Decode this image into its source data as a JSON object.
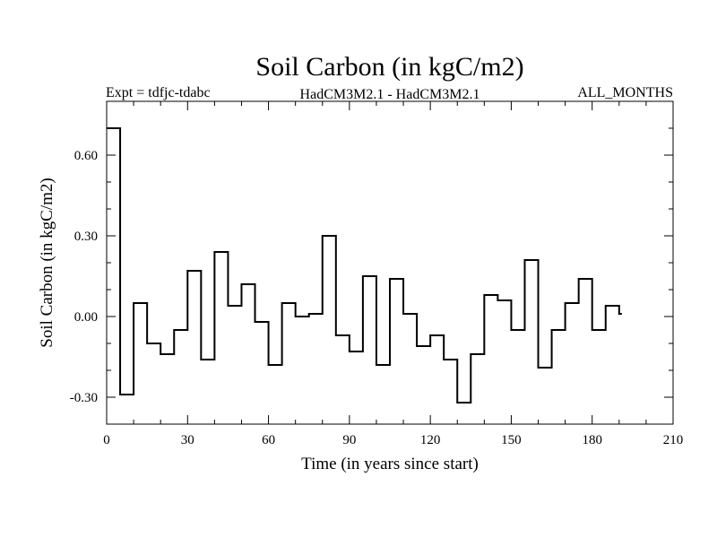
{
  "chart_data": {
    "type": "line",
    "step": true,
    "title": "Soil Carbon (in kgC/m2)",
    "subtitle_left": "Expt = tdfjc-tdabc",
    "subtitle_center": "HadCM3M2.1 - HadCM3M2.1",
    "subtitle_right": "ALL_MONTHS",
    "xlabel": "Time (in years since start)",
    "ylabel": "Soil Carbon (in kgC/m2)",
    "xlim": [
      0,
      210
    ],
    "ylim": [
      -0.4,
      0.8
    ],
    "xticks": [
      0,
      30,
      60,
      90,
      120,
      150,
      180,
      210
    ],
    "xtick_labels": [
      "0",
      "30",
      "60",
      "90",
      "120",
      "150",
      "180",
      "210"
    ],
    "yticks": [
      -0.3,
      0.0,
      0.3,
      0.6
    ],
    "ytick_labels": [
      "-0.30",
      "0.00",
      "0.30",
      "0.60"
    ],
    "grid": false,
    "series": [
      {
        "x": [
          0,
          5,
          10,
          15,
          20,
          25,
          30,
          35,
          40,
          45,
          50,
          55,
          60,
          65,
          70,
          75,
          80,
          85,
          90,
          95,
          100,
          105,
          110,
          115,
          120,
          125,
          130,
          135,
          140,
          145,
          150,
          155,
          160,
          165,
          170,
          175,
          180,
          185,
          190
        ],
        "y": [
          0.7,
          -0.29,
          0.05,
          -0.1,
          -0.14,
          -0.05,
          0.17,
          -0.16,
          0.24,
          0.04,
          0.12,
          -0.02,
          -0.18,
          0.05,
          0.0,
          0.01,
          0.3,
          -0.07,
          -0.13,
          0.15,
          -0.18,
          0.14,
          0.01,
          -0.11,
          -0.07,
          -0.16,
          -0.32,
          -0.14,
          0.08,
          0.06,
          -0.05,
          0.21,
          -0.19,
          -0.05,
          0.05,
          0.14,
          -0.05,
          0.04,
          0.01
        ],
        "x_end": 191,
        "color": "#000000"
      }
    ]
  }
}
